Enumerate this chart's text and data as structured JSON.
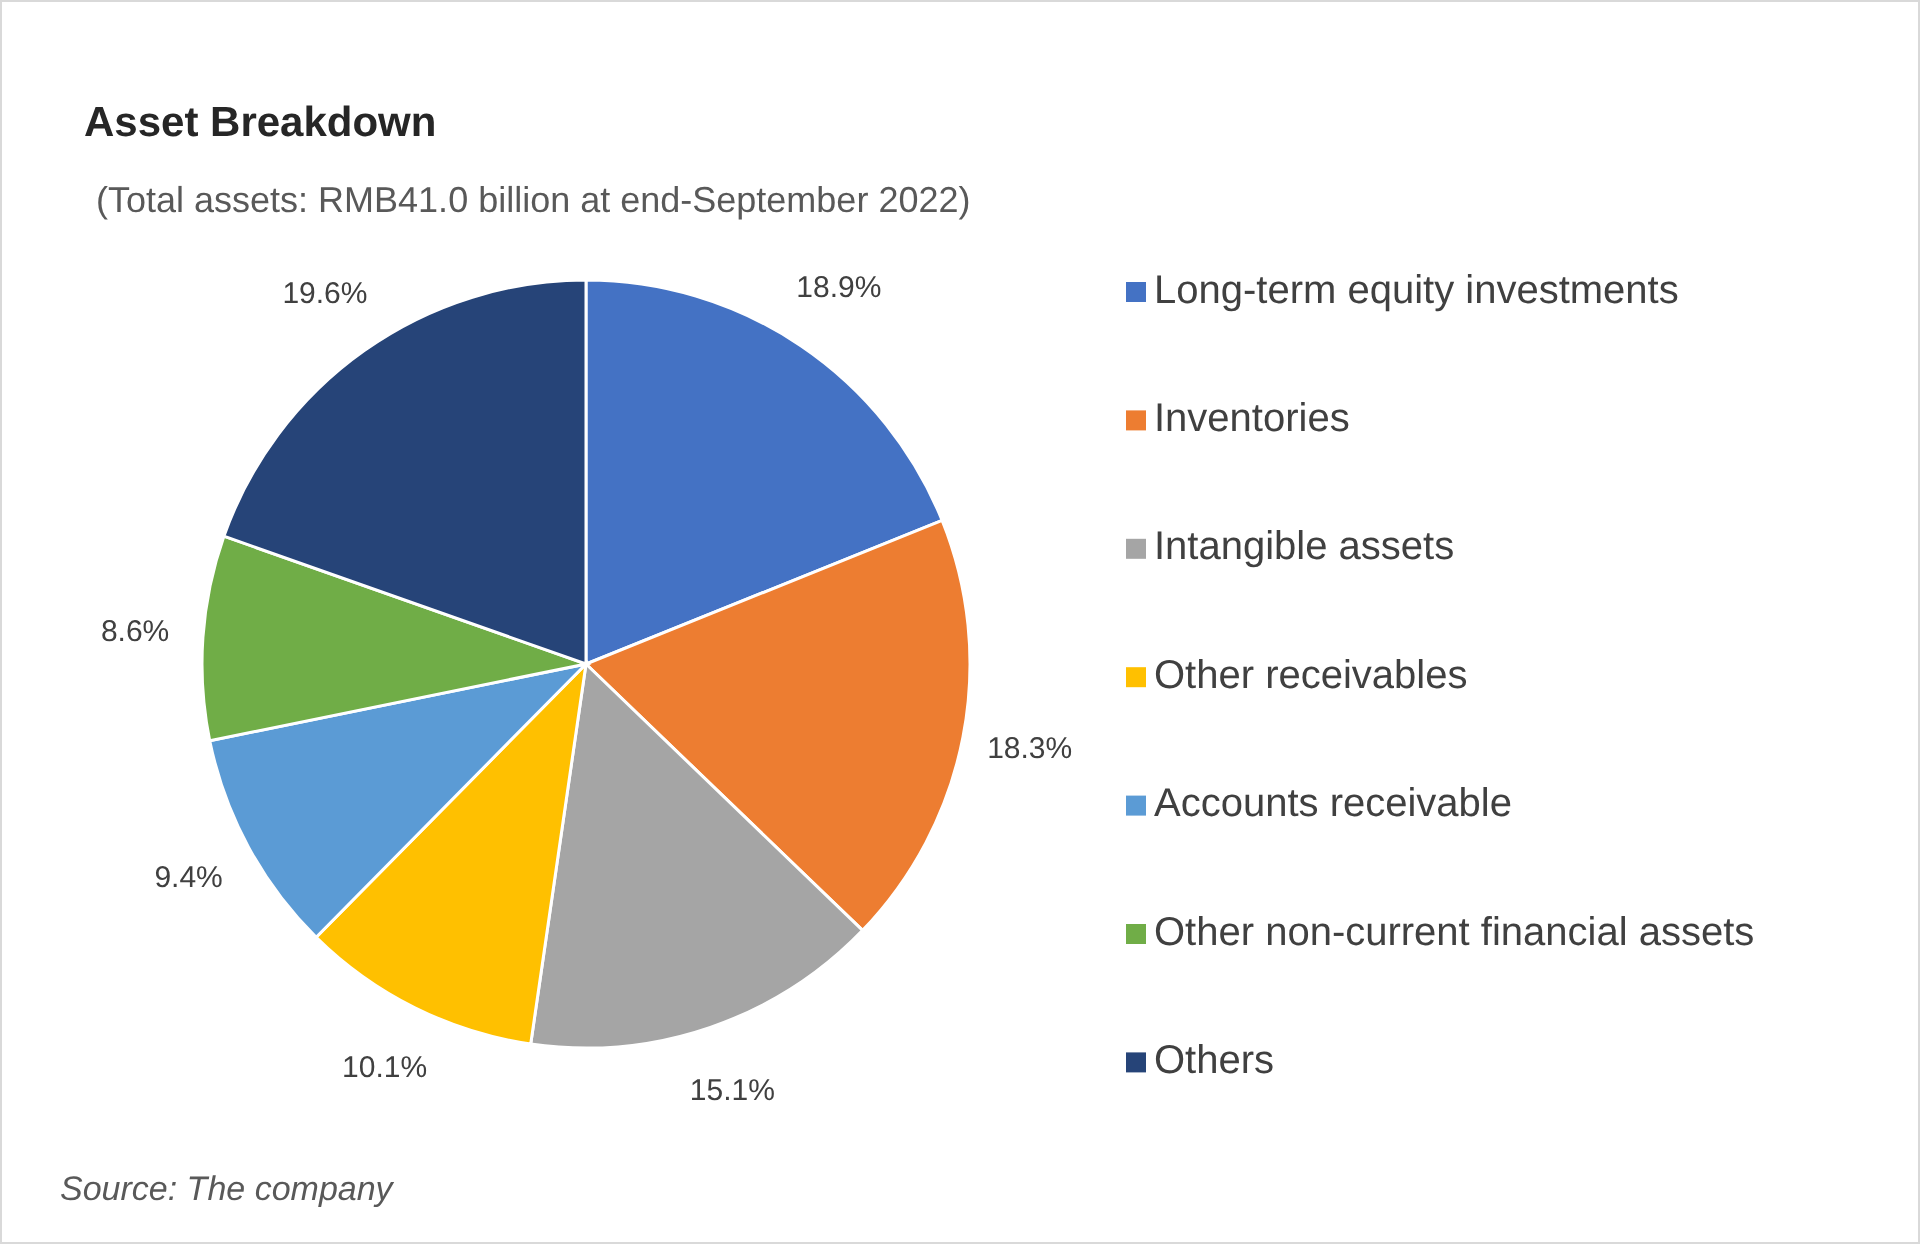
{
  "chart_data": {
    "type": "pie",
    "title": "Asset Breakdown",
    "subtitle": "(Total assets: RMB41.0 billion at end-September 2022)",
    "categories": [
      "Long-term equity investments",
      "Inventories",
      "Intangible assets",
      "Other receivables",
      "Accounts receivable",
      "Other non-current financial assets",
      "Others"
    ],
    "values": [
      18.9,
      18.3,
      15.1,
      10.1,
      9.4,
      8.6,
      19.6
    ],
    "colors": [
      "#4472c4",
      "#ed7d31",
      "#a5a5a5",
      "#ffc000",
      "#5b9bd5",
      "#70ad47",
      "#264478"
    ],
    "value_labels": [
      "18.9%",
      "18.3%",
      "15.1%",
      "10.1%",
      "9.4%",
      "8.6%",
      "19.6%"
    ],
    "legend": "right",
    "annotations": [
      "Source: The company"
    ]
  }
}
